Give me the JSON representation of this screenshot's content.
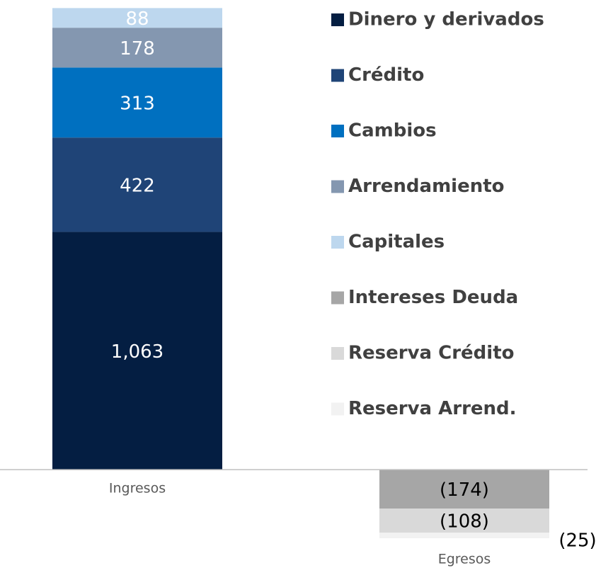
{
  "chart_data": {
    "type": "stacked_bar",
    "categories": [
      "Ingresos",
      "Egresos"
    ],
    "ylim": [
      -440,
      2100
    ],
    "series": [
      {
        "name": "Dinero y derivados",
        "color": "#041e42",
        "values": [
          1063,
          null
        ],
        "value_labels": [
          "1,063",
          null
        ]
      },
      {
        "name": "Crédito",
        "color": "#1f4477",
        "values": [
          422,
          null
        ]
      },
      {
        "name": "Cambios",
        "color": "#0070c0",
        "values": [
          313,
          null
        ]
      },
      {
        "name": "Arrendamiento",
        "color": "#8497b0",
        "values": [
          178,
          null
        ]
      },
      {
        "name": "Capitales",
        "color": "#bdd7ee",
        "values": [
          88,
          null
        ]
      },
      {
        "name": "Intereses Deuda",
        "color": "#a6a6a6",
        "values": [
          null,
          -174
        ],
        "value_labels": [
          null,
          "(174)"
        ]
      },
      {
        "name": "Reserva Crédito",
        "color": "#d9d9d9",
        "values": [
          null,
          -108
        ],
        "value_labels": [
          null,
          "(108)"
        ]
      },
      {
        "name": "Reserva Arrend.",
        "color": "#f2f2f2",
        "values": [
          null,
          -25
        ],
        "value_labels": [
          null,
          "(25)"
        ]
      }
    ]
  }
}
